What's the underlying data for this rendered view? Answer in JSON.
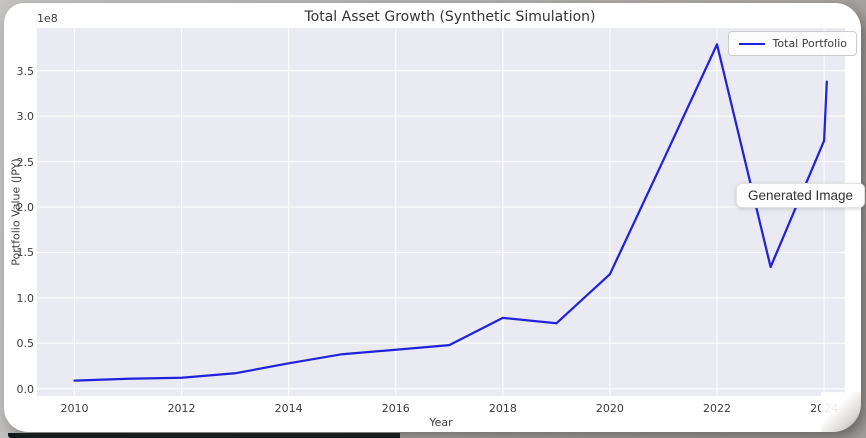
{
  "overlay": {
    "tooltip_label": "Generated Image"
  },
  "chart_data": {
    "type": "line",
    "title": "Total Asset Growth (Synthetic Simulation)",
    "xlabel": "Year",
    "ylabel": "Portfolio Value (JPY)",
    "y_offset_text": "1e8",
    "grid": true,
    "legend_position": "upper right",
    "series": [
      {
        "name": "Total Portfolio",
        "color": "#2222dd",
        "x": [
          2010,
          2011,
          2012,
          2013,
          2014,
          2015,
          2016,
          2017,
          2018,
          2019,
          2020,
          2021,
          2022,
          2023,
          2024,
          2024.05
        ],
        "values_jpy": [
          9000000,
          11000000,
          12000000,
          17000000,
          28000000,
          38000000,
          43000000,
          48000000,
          78000000,
          72000000,
          126000000,
          252000000,
          379000000,
          134000000,
          273000000,
          338000000
        ]
      }
    ],
    "xlim": [
      2009.3,
      2024.39
    ],
    "ylim_jpy": [
      -8000000,
      397000000
    ],
    "xticks": [
      2010,
      2012,
      2014,
      2016,
      2018,
      2020,
      2022,
      2024
    ],
    "yticks_jpy": [
      0,
      50000000,
      100000000,
      150000000,
      200000000,
      250000000,
      300000000,
      350000000
    ],
    "styles": {
      "plot_background": "#eaeaf2",
      "grid_color": "#ffffff",
      "text_color": "#3c3c3c",
      "figure_background": "#ffffff"
    }
  }
}
